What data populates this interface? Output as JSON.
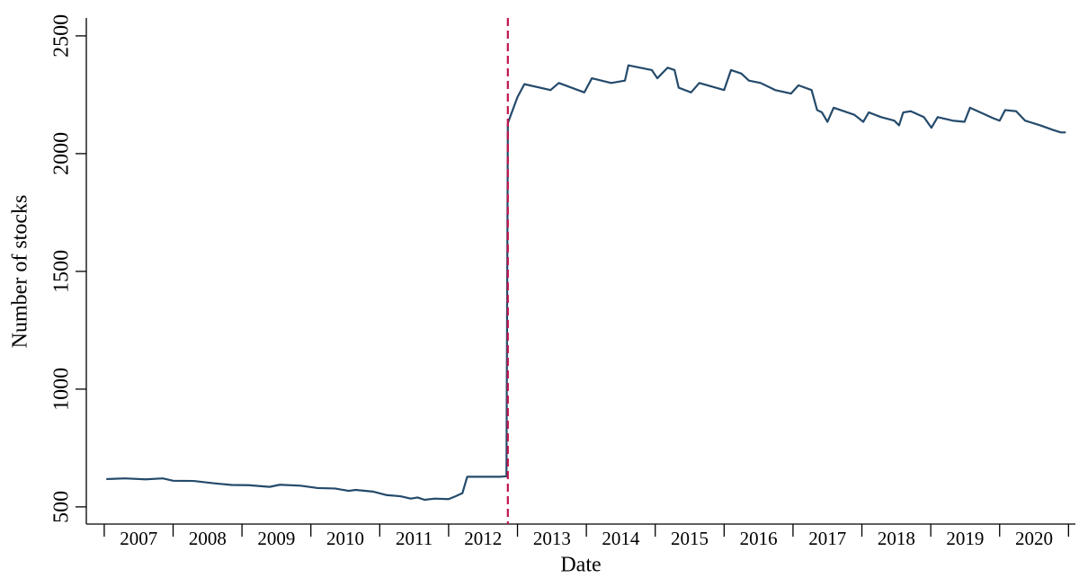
{
  "chart_data": {
    "type": "line",
    "x_label": "Date",
    "y_label": "Number of stocks",
    "xlim": [
      2006.74,
      2021.1
    ],
    "ylim": [
      427,
      2576
    ],
    "xticks": [
      2007,
      2008,
      2009,
      2010,
      2011,
      2012,
      2013,
      2014,
      2015,
      2016,
      2017,
      2018,
      2019,
      2020,
      2021
    ],
    "year_labels": [
      "2007",
      "2008",
      "2009",
      "2010",
      "2011",
      "2012",
      "2013",
      "2014",
      "2015",
      "2016",
      "2017",
      "2018",
      "2019",
      "2020"
    ],
    "yticks": [
      500,
      1000,
      1500,
      2000,
      2500
    ],
    "vline": {
      "x": 2012.86,
      "color": "#c0144c"
    },
    "series": [
      {
        "color": "#244a6b",
        "x": [
          2007.03,
          2007.3,
          2007.6,
          2007.85,
          2008.0,
          2008.3,
          2008.6,
          2008.85,
          2009.1,
          2009.4,
          2009.55,
          2009.85,
          2010.1,
          2010.35,
          2010.55,
          2010.65,
          2010.9,
          2011.1,
          2011.3,
          2011.45,
          2011.55,
          2011.65,
          2011.8,
          2012.0,
          2012.1,
          2012.2,
          2012.27,
          2012.76,
          2012.84,
          2012.86,
          2013.0,
          2013.1,
          2013.48,
          2013.6,
          2013.97,
          2014.08,
          2014.36,
          2014.56,
          2014.61,
          2014.95,
          2015.03,
          2015.18,
          2015.28,
          2015.34,
          2015.52,
          2015.64,
          2016.0,
          2016.1,
          2016.25,
          2016.36,
          2016.53,
          2016.74,
          2016.97,
          2017.08,
          2017.27,
          2017.35,
          2017.42,
          2017.5,
          2017.59,
          2017.89,
          2018.02,
          2018.1,
          2018.28,
          2018.47,
          2018.54,
          2018.6,
          2018.71,
          2018.9,
          2019.01,
          2019.1,
          2019.32,
          2019.49,
          2019.57,
          2019.91,
          2020.0,
          2020.08,
          2020.24,
          2020.37,
          2020.59,
          2020.78,
          2020.89,
          2020.96
        ],
        "values": [
          618,
          621,
          617,
          621,
          611,
          610,
          600,
          593,
          592,
          585,
          594,
          590,
          580,
          578,
          568,
          572,
          565,
          550,
          545,
          535,
          540,
          530,
          535,
          533,
          545,
          558,
          628,
          628,
          630,
          2130,
          2240,
          2295,
          2270,
          2300,
          2260,
          2320,
          2300,
          2310,
          2375,
          2355,
          2320,
          2365,
          2355,
          2280,
          2260,
          2300,
          2270,
          2355,
          2340,
          2310,
          2300,
          2270,
          2255,
          2290,
          2270,
          2185,
          2175,
          2135,
          2195,
          2165,
          2135,
          2175,
          2155,
          2140,
          2120,
          2175,
          2180,
          2155,
          2110,
          2155,
          2140,
          2135,
          2195,
          2150,
          2140,
          2185,
          2180,
          2140,
          2120,
          2100,
          2090,
          2090
        ]
      }
    ]
  }
}
